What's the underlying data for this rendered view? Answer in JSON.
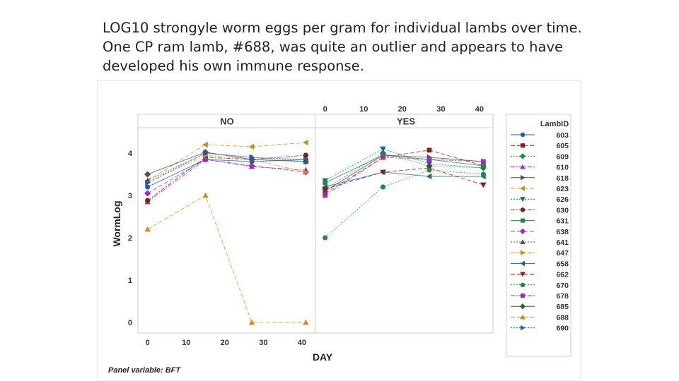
{
  "caption": "LOG10 strongyle worm eggs per gram for individual lambs over time. One CP ram lamb, #688, was quite an outlier and appears to have developed his own immune response.",
  "chart_data": {
    "type": "line",
    "panel_variable": "BFT",
    "panel_note": "Panel variable: BFT",
    "panels": [
      "NO",
      "YES"
    ],
    "xlabel": "DAY",
    "ylabel": "WormLog",
    "x_ticks": [
      0,
      10,
      20,
      30,
      40
    ],
    "y_ticks": [
      0,
      1,
      2,
      3,
      4
    ],
    "xlim": [
      -2.5,
      43.5
    ],
    "ylim": [
      -0.25,
      4.6
    ],
    "legend_title": "LambID",
    "legend_position": "right",
    "series": [
      {
        "name": "603",
        "color": "#1f5fa8",
        "marker": "circle",
        "panel": "NO",
        "x": [
          0,
          15,
          27,
          41
        ],
        "values": [
          3.2,
          3.85,
          3.8,
          3.85
        ]
      },
      {
        "name": "605",
        "color": "#8b1a1a",
        "marker": "square",
        "panel": "YES",
        "x": [
          0,
          15,
          27,
          41
        ],
        "values": [
          3.05,
          3.9,
          4.07,
          3.7
        ]
      },
      {
        "name": "609",
        "color": "#1e8c3a",
        "marker": "diamond",
        "panel": "YES",
        "x": [
          0,
          15,
          27,
          41
        ],
        "values": [
          3.15,
          4.0,
          3.7,
          3.65
        ]
      },
      {
        "name": "610",
        "color": "#9b30b8",
        "marker": "triangle-up",
        "panel": "NO",
        "x": [
          0,
          15,
          27,
          41
        ],
        "values": [
          2.85,
          3.85,
          3.68,
          3.6
        ]
      },
      {
        "name": "618",
        "color": "#505050",
        "marker": "triangle-right",
        "panel": "YES",
        "x": [
          0,
          15,
          27,
          41
        ],
        "values": [
          3.1,
          3.95,
          3.9,
          3.8
        ]
      },
      {
        "name": "623",
        "color": "#c8901a",
        "marker": "triangle-left",
        "panel": "NO",
        "x": [
          0,
          15,
          27,
          41
        ],
        "values": [
          3.35,
          4.2,
          4.15,
          4.25
        ]
      },
      {
        "name": "626",
        "color": "#1f5fa8",
        "marker": "triangle-down",
        "panel": "YES",
        "x": [
          0,
          15,
          27,
          41
        ],
        "values": [
          3.35,
          4.1,
          3.75,
          3.65
        ]
      },
      {
        "name": "630",
        "color": "#8b1a1a",
        "marker": "circle",
        "panel": "NO",
        "x": [
          0,
          15,
          27,
          41
        ],
        "values": [
          2.88,
          3.9,
          3.85,
          3.95
        ]
      },
      {
        "name": "631",
        "color": "#1e8c3a",
        "marker": "square",
        "panel": "YES",
        "x": [
          0,
          15,
          27,
          41
        ],
        "values": [
          3.3,
          3.95,
          3.85,
          3.7
        ]
      },
      {
        "name": "638",
        "color": "#9b30b8",
        "marker": "diamond",
        "panel": "NO",
        "x": [
          0,
          15,
          27,
          41
        ],
        "values": [
          3.05,
          3.85,
          3.7,
          3.55
        ]
      },
      {
        "name": "641",
        "color": "#505050",
        "marker": "triangle-up",
        "panel": "NO",
        "x": [
          0,
          15,
          27,
          41
        ],
        "values": [
          3.35,
          4.0,
          3.9,
          3.8
        ]
      },
      {
        "name": "647",
        "color": "#c8901a",
        "marker": "triangle-right",
        "panel": "NO",
        "x": [
          0,
          15,
          27,
          41
        ],
        "values": [
          3.3,
          3.95,
          3.85,
          3.55
        ]
      },
      {
        "name": "658",
        "color": "#1f5fa8",
        "marker": "triangle-left",
        "panel": "YES",
        "x": [
          0,
          15,
          27,
          41
        ],
        "values": [
          3.2,
          3.55,
          3.45,
          3.45
        ]
      },
      {
        "name": "662",
        "color": "#8b1a1a",
        "marker": "triangle-down",
        "panel": "YES",
        "x": [
          0,
          15,
          27,
          41
        ],
        "values": [
          3.15,
          3.55,
          3.65,
          3.25
        ]
      },
      {
        "name": "670",
        "color": "#1e8c3a",
        "marker": "circle",
        "panel": "YES",
        "x": [
          0,
          15,
          27,
          41
        ],
        "values": [
          2.0,
          3.2,
          3.6,
          3.5
        ]
      },
      {
        "name": "678",
        "color": "#9b30b8",
        "marker": "square",
        "panel": "YES",
        "x": [
          0,
          15,
          27,
          41
        ],
        "values": [
          3.0,
          3.9,
          3.85,
          3.8
        ]
      },
      {
        "name": "685",
        "color": "#505050",
        "marker": "diamond",
        "panel": "NO",
        "x": [
          0,
          15,
          27,
          41
        ],
        "values": [
          3.5,
          4.02,
          3.85,
          3.8
        ]
      },
      {
        "name": "688",
        "color": "#c8901a",
        "marker": "triangle-up",
        "panel": "NO",
        "x": [
          0,
          15,
          27,
          41
        ],
        "values": [
          2.2,
          3.0,
          0.0,
          0.0
        ]
      },
      {
        "name": "690",
        "color": "#1f5fa8",
        "marker": "triangle-right",
        "panel": "NO",
        "x": [
          0,
          15,
          27,
          41
        ],
        "values": [
          3.3,
          4.0,
          3.9,
          3.85
        ]
      }
    ]
  }
}
